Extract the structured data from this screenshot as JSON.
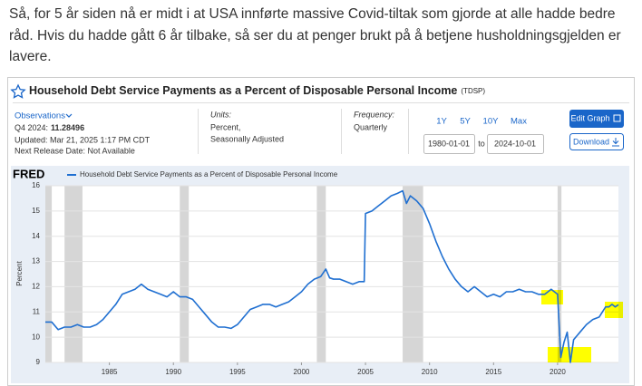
{
  "post": {
    "lines": [
      "Så, for 5 år siden nå er midt i at USA innførte massive Covid-tiltak som gjorde at alle hadde bedre",
      "råd. Hvis du hadde gått 6 år tilbake, så ser du at penger brukt på å betjene husholdningsgjelden er",
      "lavere."
    ]
  },
  "widget": {
    "title": "Household Debt Service Payments as a Percent of Disposable Personal Income",
    "code": "(TDSP)",
    "observations": "Observations",
    "latest_label": "Q4 2024:",
    "latest_value": "11.28496",
    "updated": "Updated: Mar 21, 2025 1:17 PM CDT",
    "next_release": "Next Release Date: Not Available",
    "units_label": "Units:",
    "units": [
      "Percent,",
      "Seasonally Adjusted"
    ],
    "frequency_label": "Frequency:",
    "frequency": "Quarterly",
    "ranges": [
      "1Y",
      "5Y",
      "10Y",
      "Max"
    ],
    "start_date": "1980-01-01",
    "to": "to",
    "end_date": "2024-10-01",
    "edit": "Edit Graph",
    "download": "Download"
  },
  "chart_data": {
    "type": "line",
    "logo": "FRED",
    "ylabel": "Percent",
    "grid": true,
    "x": [
      1980,
      1980.5,
      1981,
      1981.5,
      1982,
      1982.5,
      1983,
      1983.5,
      1984,
      1984.5,
      1985,
      1985.5,
      1986,
      1986.5,
      1987,
      1987.5,
      1988,
      1988.5,
      1989,
      1989.5,
      1990,
      1990.5,
      1991,
      1991.5,
      1992,
      1992.5,
      1993,
      1993.5,
      1994,
      1994.5,
      1995,
      1995.5,
      1996,
      1996.5,
      1997,
      1997.5,
      1998,
      1998.5,
      1999,
      1999.5,
      2000,
      2000.5,
      2001,
      2001.5,
      2001.9,
      2002.2,
      2002.5,
      2003,
      2003.5,
      2004,
      2004.5,
      2004.9,
      2005,
      2005.5,
      2006,
      2006.5,
      2007,
      2007.5,
      2007.9,
      2008.2,
      2008.5,
      2009,
      2009.5,
      2010,
      2010.5,
      2011,
      2011.5,
      2012,
      2012.5,
      2013,
      2013.5,
      2014,
      2014.5,
      2015,
      2015.5,
      2016,
      2016.5,
      2017,
      2017.5,
      2018,
      2018.5,
      2019,
      2019.5,
      2019.75,
      2020,
      2020.25,
      2020.5,
      2020.75,
      2021,
      2021.25,
      2021.75,
      2022.25,
      2022.75,
      2023.25,
      2023.75,
      2024,
      2024.25,
      2024.5,
      2024.75
    ],
    "series": [
      {
        "name": "Household Debt Service Payments as a Percent of Disposable Personal Income",
        "color": "#1f6fd1",
        "values": [
          10.6,
          10.6,
          10.3,
          10.4,
          10.4,
          10.5,
          10.4,
          10.4,
          10.5,
          10.7,
          11.0,
          11.3,
          11.7,
          11.8,
          11.9,
          12.1,
          11.9,
          11.8,
          11.7,
          11.6,
          11.8,
          11.6,
          11.6,
          11.5,
          11.2,
          10.9,
          10.6,
          10.4,
          10.4,
          10.35,
          10.5,
          10.8,
          11.1,
          11.2,
          11.3,
          11.3,
          11.2,
          11.3,
          11.4,
          11.6,
          11.8,
          12.1,
          12.3,
          12.4,
          12.7,
          12.35,
          12.3,
          12.3,
          12.2,
          12.1,
          12.2,
          12.2,
          14.9,
          15.0,
          15.2,
          15.4,
          15.6,
          15.7,
          15.8,
          15.3,
          15.6,
          15.4,
          15.1,
          14.5,
          13.8,
          13.2,
          12.7,
          12.3,
          12.0,
          11.8,
          12.0,
          11.8,
          11.6,
          11.7,
          11.6,
          11.8,
          11.8,
          11.9,
          11.8,
          11.8,
          11.7,
          11.7,
          11.9,
          11.8,
          11.7,
          9.2,
          9.8,
          10.2,
          9.0,
          9.9,
          10.2,
          10.5,
          10.7,
          10.8,
          11.2,
          11.2,
          11.3,
          11.2,
          11.28496
        ]
      }
    ],
    "recessions": [
      [
        1980.0,
        1980.5
      ],
      [
        1981.5,
        1982.9
      ],
      [
        1990.5,
        1991.2
      ],
      [
        2001.2,
        2001.9
      ],
      [
        2007.9,
        2009.5
      ],
      [
        2020.0,
        2020.3
      ]
    ],
    "xlim": [
      1980,
      2024.75
    ],
    "xticks": [
      1985,
      1990,
      1995,
      2000,
      2005,
      2010,
      2015,
      2020
    ],
    "ylim": [
      9,
      16
    ],
    "yticks": [
      9,
      10,
      11,
      12,
      13,
      14,
      15,
      16
    ]
  }
}
